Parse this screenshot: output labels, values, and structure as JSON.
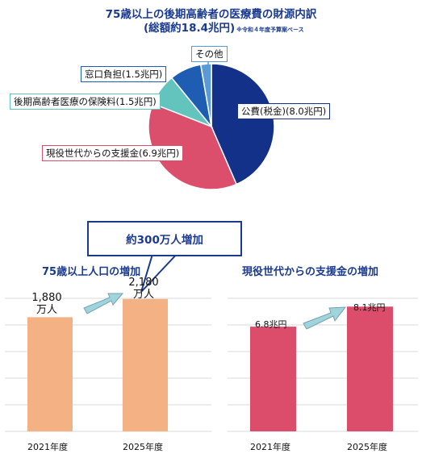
{
  "pie_section": {
    "title_line1": "75歳以上の後期高齢者の医療費の財源内訳",
    "title_line2": "(総額約18.4兆円)",
    "title_note": "※令和４年度予算案ベース"
  },
  "callout_text": "約300万人増加",
  "population_section": {
    "title": "75歳以上人口の増加",
    "value_2021": [
      "1,880",
      "万人"
    ],
    "value_2025": [
      "2,180",
      "万人"
    ]
  },
  "support_section": {
    "title": "現役世代からの支援金の増加",
    "value_2021": "6.8兆円",
    "value_2025": "8.1兆円"
  },
  "chart_data": [
    {
      "type": "pie",
      "title": "75歳以上の後期高齢者の医療費の財源内訳",
      "slices": [
        {
          "label": "公費(税金)(8.0兆円)",
          "value": 8.0,
          "color": "#14318a"
        },
        {
          "label": "現役世代からの支援金(6.9兆円)",
          "value": 6.9,
          "color": "#db4f6d"
        },
        {
          "label": "後期高齢者医療の保険料(1.5兆円)",
          "value": 1.5,
          "color": "#63c3bd"
        },
        {
          "label": "窓口負担(1.5兆円)",
          "value": 1.5,
          "color": "#1f5db3"
        },
        {
          "label": "その他",
          "value": 0.5,
          "color": "#5b9bd5"
        }
      ]
    },
    {
      "type": "bar",
      "title": "75歳以上人口の増加",
      "categories": [
        "2021年度",
        "2025年度"
      ],
      "values": [
        1880,
        2180
      ],
      "color": "#f4b183"
    },
    {
      "type": "bar",
      "title": "現役世代からの支援金の増加",
      "categories": [
        "2021年度",
        "2025年度"
      ],
      "values": [
        6.8,
        8.1
      ],
      "color": "#dc4d6b"
    }
  ]
}
